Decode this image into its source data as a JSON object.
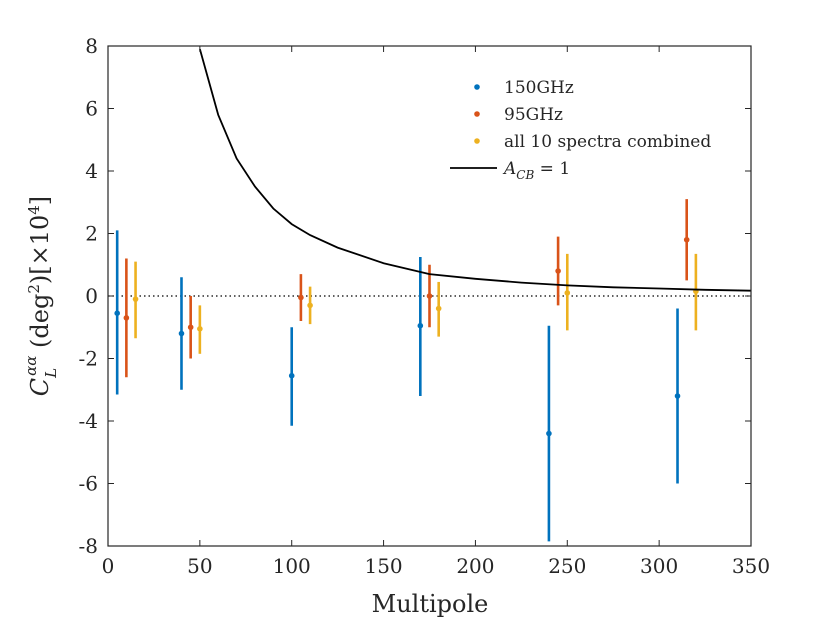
{
  "chart_data": {
    "type": "scatter",
    "xlabel": "Multipole",
    "ylabel": "C_L^{αα} (deg²)[×10⁴]",
    "xlim": [
      0,
      350
    ],
    "ylim": [
      -8,
      8
    ],
    "xticks": [
      0,
      50,
      100,
      150,
      200,
      250,
      300,
      350
    ],
    "yticks": [
      -8,
      -6,
      -4,
      -2,
      0,
      2,
      4,
      6,
      8
    ],
    "grid": false,
    "legend_position": "top-right",
    "zero_line": {
      "y": 0,
      "style": "dotted"
    },
    "series": [
      {
        "name": "150GHz",
        "color": "#0072BD",
        "kind": "errorbar",
        "points": [
          {
            "x": 5,
            "y": -0.55,
            "lo": -3.15,
            "hi": 2.1
          },
          {
            "x": 40,
            "y": -1.2,
            "lo": -3.0,
            "hi": 0.6
          },
          {
            "x": 100,
            "y": -2.55,
            "lo": -4.15,
            "hi": -1.0
          },
          {
            "x": 170,
            "y": -0.95,
            "lo": -3.2,
            "hi": 1.25
          },
          {
            "x": 240,
            "y": -4.4,
            "lo": -7.85,
            "hi": -0.95
          },
          {
            "x": 310,
            "y": -3.2,
            "lo": -6.0,
            "hi": -0.4
          }
        ]
      },
      {
        "name": "95GHz",
        "color": "#D95319",
        "kind": "errorbar",
        "points": [
          {
            "x": 10,
            "y": -0.7,
            "lo": -2.6,
            "hi": 1.2
          },
          {
            "x": 45,
            "y": -1.0,
            "lo": -2.0,
            "hi": 0.0
          },
          {
            "x": 105,
            "y": -0.05,
            "lo": -0.8,
            "hi": 0.7
          },
          {
            "x": 175,
            "y": 0.0,
            "lo": -1.0,
            "hi": 1.0
          },
          {
            "x": 245,
            "y": 0.8,
            "lo": -0.3,
            "hi": 1.9
          },
          {
            "x": 315,
            "y": 1.8,
            "lo": 0.5,
            "hi": 3.1
          }
        ]
      },
      {
        "name": "all 10 spectra combined",
        "color": "#EDB120",
        "kind": "errorbar",
        "points": [
          {
            "x": 15,
            "y": -0.1,
            "lo": -1.35,
            "hi": 1.1
          },
          {
            "x": 50,
            "y": -1.05,
            "lo": -1.85,
            "hi": -0.3
          },
          {
            "x": 110,
            "y": -0.3,
            "lo": -0.9,
            "hi": 0.3
          },
          {
            "x": 180,
            "y": -0.4,
            "lo": -1.3,
            "hi": 0.45
          },
          {
            "x": 250,
            "y": 0.1,
            "lo": -1.1,
            "hi": 1.35
          },
          {
            "x": 320,
            "y": 0.15,
            "lo": -1.1,
            "hi": 1.35
          }
        ]
      },
      {
        "name": "A_CB = 1",
        "color": "#000000",
        "kind": "line",
        "points": [
          {
            "x": 50,
            "y": 7.9
          },
          {
            "x": 60,
            "y": 5.8
          },
          {
            "x": 70,
            "y": 4.4
          },
          {
            "x": 80,
            "y": 3.5
          },
          {
            "x": 90,
            "y": 2.8
          },
          {
            "x": 100,
            "y": 2.3
          },
          {
            "x": 110,
            "y": 1.95
          },
          {
            "x": 125,
            "y": 1.55
          },
          {
            "x": 150,
            "y": 1.05
          },
          {
            "x": 175,
            "y": 0.7
          },
          {
            "x": 200,
            "y": 0.55
          },
          {
            "x": 225,
            "y": 0.43
          },
          {
            "x": 250,
            "y": 0.34
          },
          {
            "x": 275,
            "y": 0.28
          },
          {
            "x": 300,
            "y": 0.24
          },
          {
            "x": 325,
            "y": 0.2
          },
          {
            "x": 350,
            "y": 0.17
          }
        ]
      }
    ],
    "legend": [
      {
        "label": "150GHz",
        "color": "#0072BD"
      },
      {
        "label": "95GHz",
        "color": "#D95319"
      },
      {
        "label": "all 10 spectra combined",
        "color": "#EDB120"
      },
      {
        "label": "A_CB = 1",
        "color": "#000000"
      }
    ]
  }
}
